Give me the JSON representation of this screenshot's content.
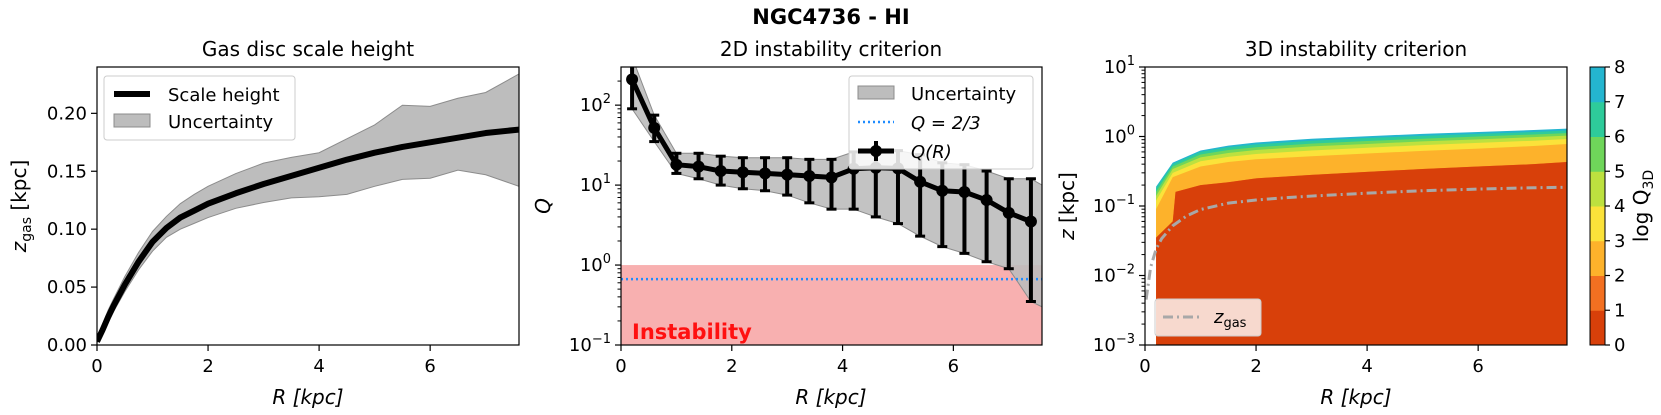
{
  "figure_title": "NGC4736 - HI",
  "chart_data": [
    {
      "type": "line",
      "title": "Gas disc scale height",
      "xlabel": "R [kpc]",
      "ylabel": "z_gas [kpc]",
      "ylabel_main": "z",
      "ylabel_sub": "gas",
      "ylabel_unit": " [kpc]",
      "xlim": [
        0,
        7.6
      ],
      "ylim": [
        0,
        0.24
      ],
      "xticks": [
        0,
        2,
        4,
        6
      ],
      "xtick_labels": [
        "0",
        "2",
        "4",
        "6"
      ],
      "yticks": [
        0,
        0.05,
        0.1,
        0.15,
        0.2
      ],
      "ytick_labels": [
        "0.00",
        "0.05",
        "0.10",
        "0.15",
        "0.20"
      ],
      "legend": {
        "position": "top-left",
        "entries": [
          "Scale height",
          "Uncertainty"
        ]
      },
      "series": [
        {
          "name": "Scale height",
          "x": [
            0,
            0.1,
            0.2,
            0.3,
            0.5,
            0.75,
            1,
            1.25,
            1.5,
            1.75,
            2,
            2.5,
            3,
            3.5,
            4,
            4.5,
            5,
            5.5,
            6,
            6.5,
            7,
            7.6
          ],
          "y": [
            0.003,
            0.013,
            0.024,
            0.034,
            0.052,
            0.072,
            0.089,
            0.101,
            0.11,
            0.116,
            0.122,
            0.131,
            0.139,
            0.146,
            0.153,
            0.16,
            0.166,
            0.171,
            0.175,
            0.179,
            0.183,
            0.186
          ]
        },
        {
          "name": "Uncertainty",
          "x": [
            0,
            0.1,
            0.2,
            0.3,
            0.5,
            0.75,
            1,
            1.25,
            1.5,
            1.75,
            2,
            2.5,
            3,
            3.5,
            4,
            4.5,
            5,
            5.5,
            6,
            6.5,
            7,
            7.6
          ],
          "upper": [
            0.005,
            0.018,
            0.03,
            0.04,
            0.059,
            0.08,
            0.098,
            0.111,
            0.122,
            0.13,
            0.137,
            0.148,
            0.157,
            0.162,
            0.166,
            0.178,
            0.19,
            0.207,
            0.206,
            0.213,
            0.218,
            0.234
          ],
          "lower": [
            0.002,
            0.01,
            0.02,
            0.029,
            0.046,
            0.065,
            0.081,
            0.093,
            0.1,
            0.105,
            0.11,
            0.118,
            0.123,
            0.127,
            0.128,
            0.13,
            0.137,
            0.143,
            0.144,
            0.151,
            0.147,
            0.137
          ]
        }
      ]
    },
    {
      "type": "line",
      "title": "2D instability criterion",
      "xlabel": "R [kpc]",
      "ylabel": "Q",
      "xlim": [
        0,
        7.6
      ],
      "ylim": [
        0.1,
        300
      ],
      "yscale": "log",
      "xticks": [
        0,
        2,
        4,
        6
      ],
      "xtick_labels": [
        "0",
        "2",
        "4",
        "6"
      ],
      "yticks": [
        0.1,
        1,
        10,
        100
      ],
      "ytick_base": [
        "10",
        "10",
        "10",
        "10"
      ],
      "ytick_exp": [
        "−1",
        "0",
        "1",
        "2"
      ],
      "legend": {
        "position": "top-right",
        "entries": [
          "Uncertainty",
          "Q = 2/3",
          "Q(R)"
        ]
      },
      "instability_region": {
        "ymin": 0.1,
        "ymax": 1.0,
        "label": "Instability"
      },
      "threshold": {
        "name": "Q = 2/3",
        "value": 0.6667
      },
      "series": [
        {
          "name": "Q(R)",
          "x": [
            0.2,
            0.6,
            1.0,
            1.4,
            1.8,
            2.2,
            2.6,
            3.0,
            3.4,
            3.8,
            4.2,
            4.6,
            5.0,
            5.4,
            5.8,
            6.2,
            6.6,
            7.0,
            7.4
          ],
          "y": [
            210,
            52,
            18,
            17,
            15,
            14.5,
            14,
            13.5,
            13,
            12.5,
            16,
            16.5,
            16.2,
            11,
            8.5,
            8.2,
            6.5,
            4.5,
            3.5
          ],
          "yerr_upper": [
            400,
            75,
            25,
            25,
            23,
            22,
            22,
            22,
            21,
            21,
            26,
            26,
            27,
            24,
            19,
            18,
            15,
            12,
            12
          ],
          "yerr_lower": [
            90,
            35,
            14,
            12,
            10,
            9,
            8.5,
            7.5,
            6,
            5,
            5,
            4,
            3.3,
            2.3,
            1.7,
            1.4,
            1.1,
            0.9,
            0.35
          ]
        },
        {
          "name": "Uncertainty",
          "x": [
            0.2,
            0.6,
            1.0,
            1.4,
            1.8,
            2.2,
            2.6,
            3.0,
            3.4,
            3.8,
            4.2,
            4.6,
            5.0,
            5.4,
            5.8,
            6.2,
            6.6,
            7.0,
            7.4,
            7.6
          ],
          "upper": [
            400,
            75,
            25,
            25,
            23,
            22,
            22,
            22,
            21,
            21,
            26,
            26,
            27,
            24,
            19,
            18,
            15,
            12,
            12,
            10
          ],
          "lower": [
            90,
            35,
            14,
            12,
            10,
            9,
            8.5,
            7.5,
            6,
            5,
            5,
            4,
            3.3,
            2.3,
            1.7,
            1.4,
            1.1,
            0.9,
            0.35,
            0.3
          ]
        }
      ]
    },
    {
      "type": "heatmap",
      "title": "3D instability criterion",
      "xlabel": "R [kpc]",
      "ylabel": "z [kpc]",
      "xlim": [
        0,
        7.6
      ],
      "ylim": [
        0.001,
        10
      ],
      "yscale": "log",
      "xticks": [
        0,
        2,
        4,
        6
      ],
      "xtick_labels": [
        "0",
        "2",
        "4",
        "6"
      ],
      "yticks": [
        0.001,
        0.01,
        0.1,
        1,
        10
      ],
      "ytick_base": [
        "10",
        "10",
        "10",
        "10",
        "10"
      ],
      "ytick_exp": [
        "−3",
        "−2",
        "−1",
        "0",
        "1"
      ],
      "filled_from_R": 0.2,
      "colorbar": {
        "label": "log Q_3D",
        "label_main": "log Q",
        "label_sub": "3D",
        "levels": [
          0,
          1,
          2,
          3,
          4,
          5,
          6,
          7,
          8
        ],
        "tick_labels": [
          "0",
          "1",
          "2",
          "3",
          "4",
          "5",
          "6",
          "7",
          "8"
        ],
        "colors": [
          "#d8400a",
          "#f37021",
          "#fdb22b",
          "#fbe23a",
          "#bde13f",
          "#6fd65a",
          "#2ecb9a",
          "#24b5cf",
          "#2c8ee8"
        ]
      },
      "contour_boundaries": [
        {
          "level": 1,
          "R": [
            0.2,
            0.5,
            0.55,
            1,
            1.5,
            2,
            3,
            4,
            5,
            6,
            7,
            7.6
          ],
          "z": [
            0.035,
            0.06,
            0.16,
            0.2,
            0.22,
            0.25,
            0.28,
            0.31,
            0.34,
            0.37,
            0.4,
            0.43
          ]
        },
        {
          "level": 2,
          "R": [
            0.2,
            0.5,
            1,
            1.5,
            2,
            3,
            4,
            5,
            6,
            7,
            7.6
          ],
          "z": [
            0.09,
            0.26,
            0.37,
            0.43,
            0.47,
            0.52,
            0.57,
            0.62,
            0.67,
            0.73,
            0.78
          ]
        },
        {
          "level": 3,
          "R": [
            0.2,
            0.5,
            1,
            1.5,
            2,
            3,
            4,
            5,
            6,
            7,
            7.6
          ],
          "z": [
            0.12,
            0.3,
            0.44,
            0.51,
            0.56,
            0.63,
            0.69,
            0.75,
            0.81,
            0.87,
            0.92
          ]
        },
        {
          "level": 4,
          "R": [
            0.2,
            0.5,
            1,
            1.5,
            2,
            3,
            4,
            5,
            6,
            7,
            7.6
          ],
          "z": [
            0.14,
            0.34,
            0.5,
            0.58,
            0.64,
            0.72,
            0.78,
            0.85,
            0.91,
            0.98,
            1.03
          ]
        },
        {
          "level": 5,
          "R": [
            0.2,
            0.5,
            1,
            1.5,
            2,
            3,
            4,
            5,
            6,
            7,
            7.6
          ],
          "z": [
            0.16,
            0.37,
            0.55,
            0.64,
            0.7,
            0.79,
            0.86,
            0.93,
            1.0,
            1.07,
            1.12
          ]
        },
        {
          "level": 6,
          "R": [
            0.2,
            0.5,
            1,
            1.5,
            2,
            3,
            4,
            5,
            6,
            7,
            7.6
          ],
          "z": [
            0.18,
            0.4,
            0.6,
            0.7,
            0.77,
            0.87,
            0.95,
            1.02,
            1.09,
            1.16,
            1.22
          ]
        },
        {
          "level": 7,
          "R": [
            0.2,
            0.5,
            1,
            1.5,
            2,
            3,
            4,
            5,
            6,
            7,
            7.6
          ],
          "z": [
            0.19,
            0.42,
            0.63,
            0.74,
            0.82,
            0.93,
            1.01,
            1.09,
            1.16,
            1.24,
            1.3
          ]
        }
      ],
      "series": [
        {
          "name": "z_gas",
          "x": [
            0.02,
            0.1,
            0.2,
            0.3,
            0.5,
            0.75,
            1,
            1.5,
            2,
            2.5,
            3,
            4,
            5,
            6,
            7,
            7.6
          ],
          "y": [
            0.0045,
            0.013,
            0.024,
            0.034,
            0.052,
            0.072,
            0.089,
            0.11,
            0.122,
            0.131,
            0.139,
            0.153,
            0.166,
            0.175,
            0.183,
            0.186
          ]
        }
      ],
      "legend": {
        "position": "bottom-left",
        "entries": [
          "z_gas"
        ],
        "label_main": "z",
        "label_sub": "gas"
      }
    }
  ]
}
